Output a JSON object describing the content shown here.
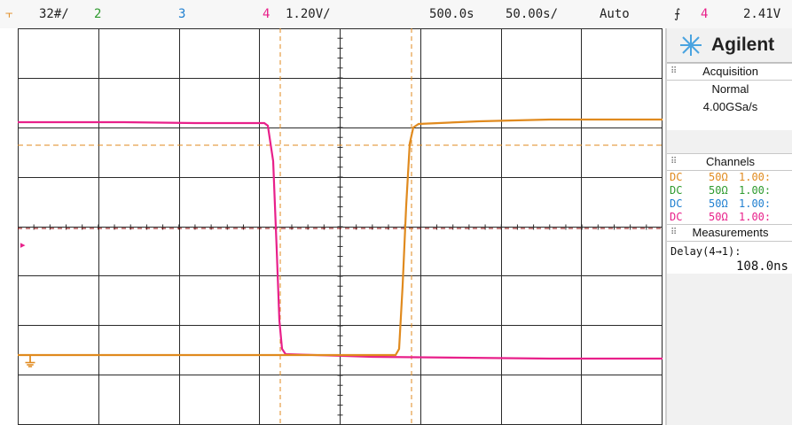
{
  "topbar": {
    "trigger_icon": "trigger-level-icon",
    "ch1_label": "3",
    "ch1_scale": "32#/",
    "ch2_label": "2",
    "ch3_label": "3",
    "ch4_label": "4",
    "ch4_scale": "1.20V/",
    "time_offset": "500.0s",
    "time_scale": "50.00s/",
    "mode": "Auto",
    "trig_slope_icon": "rising-edge-icon",
    "trig_channel": "4",
    "trig_level": "2.41V"
  },
  "panel": {
    "brand": "Agilent",
    "acquisition": {
      "title": "Acquisition",
      "mode": "Normal",
      "rate": "4.00GSa/s"
    },
    "channels": {
      "title": "Channels",
      "rows": [
        {
          "coupling": "DC",
          "impedance": "50Ω",
          "scale": "1.00:",
          "color": "#e08a1e"
        },
        {
          "coupling": "DC",
          "impedance": "50Ω",
          "scale": "1.00:",
          "color": "#2e9a2e"
        },
        {
          "coupling": "DC",
          "impedance": "50Ω",
          "scale": "1.00:",
          "color": "#1f7fd0"
        },
        {
          "coupling": "DC",
          "impedance": "50Ω",
          "scale": "1.00:",
          "color": "#e8208a"
        }
      ]
    },
    "measurements": {
      "title": "Measurements",
      "label": "Delay(4→1):",
      "value": "108.0ns"
    }
  },
  "colors": {
    "ch1": "#e08a1e",
    "ch2": "#2e9a2e",
    "ch3": "#1f7fd0",
    "ch4": "#e8208a",
    "grid": "#2a2a2a"
  }
}
